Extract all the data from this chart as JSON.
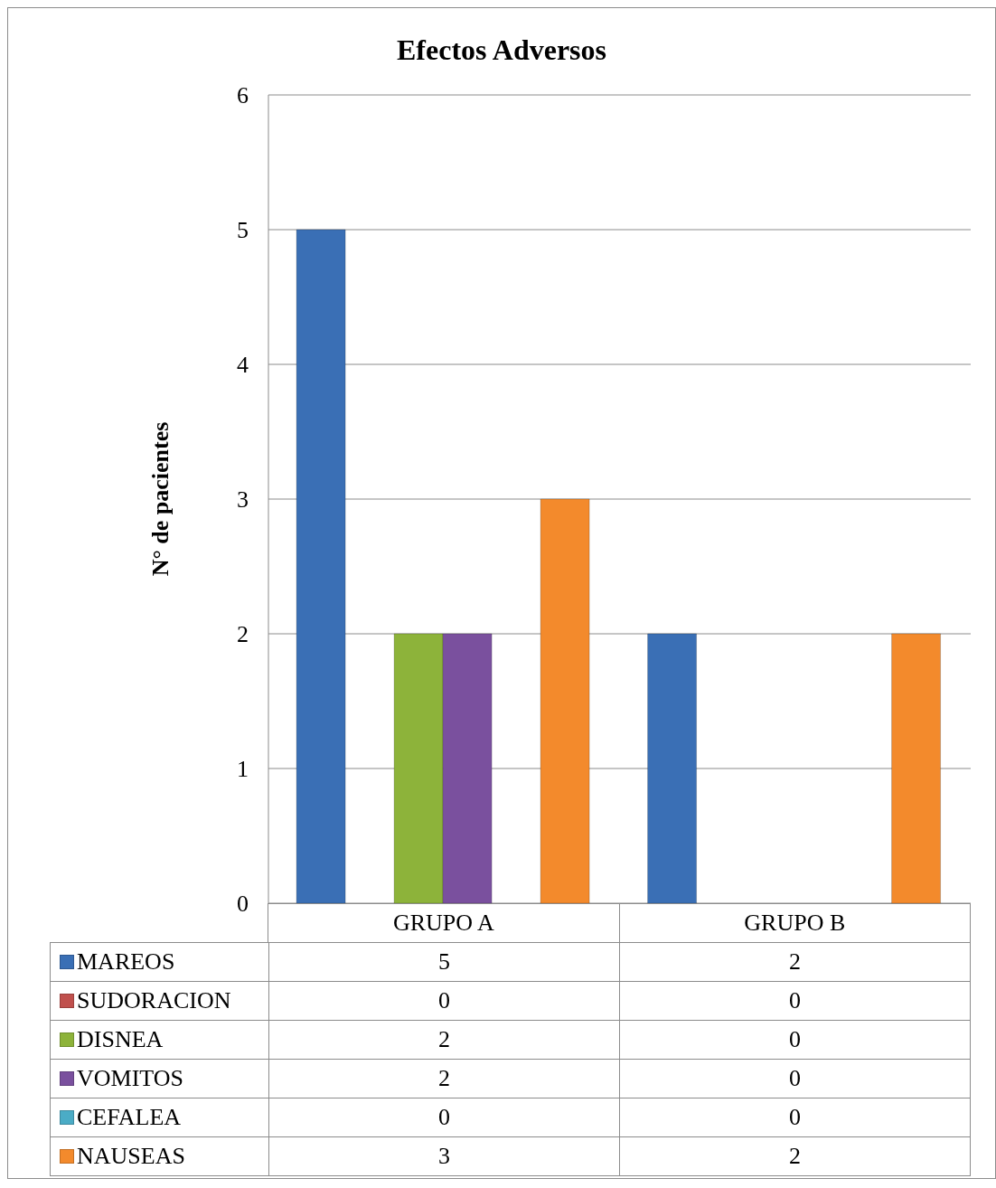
{
  "chart_data": {
    "type": "bar",
    "title": "Efectos Adversos",
    "ylabel": "N° de pacientes",
    "categories": [
      "GRUPO A",
      "GRUPO B"
    ],
    "series": [
      {
        "name": "MAREOS",
        "color": "#3a6fb5",
        "values": [
          5,
          2
        ]
      },
      {
        "name": "SUDORACION",
        "color": "#c0504d",
        "values": [
          0,
          0
        ]
      },
      {
        "name": "DISNEA",
        "color": "#8db33a",
        "values": [
          2,
          0
        ]
      },
      {
        "name": "VOMITOS",
        "color": "#7a509e",
        "values": [
          2,
          0
        ]
      },
      {
        "name": "CEFALEA",
        "color": "#4bacc6",
        "values": [
          0,
          0
        ]
      },
      {
        "name": "NAUSEAS",
        "color": "#f38a2c",
        "values": [
          3,
          2
        ]
      }
    ],
    "ylim": [
      0,
      6
    ],
    "yticks": [
      0,
      1,
      2,
      3,
      4,
      5,
      6
    ],
    "grid": "y",
    "legend": "bottom",
    "data_labels": true
  }
}
